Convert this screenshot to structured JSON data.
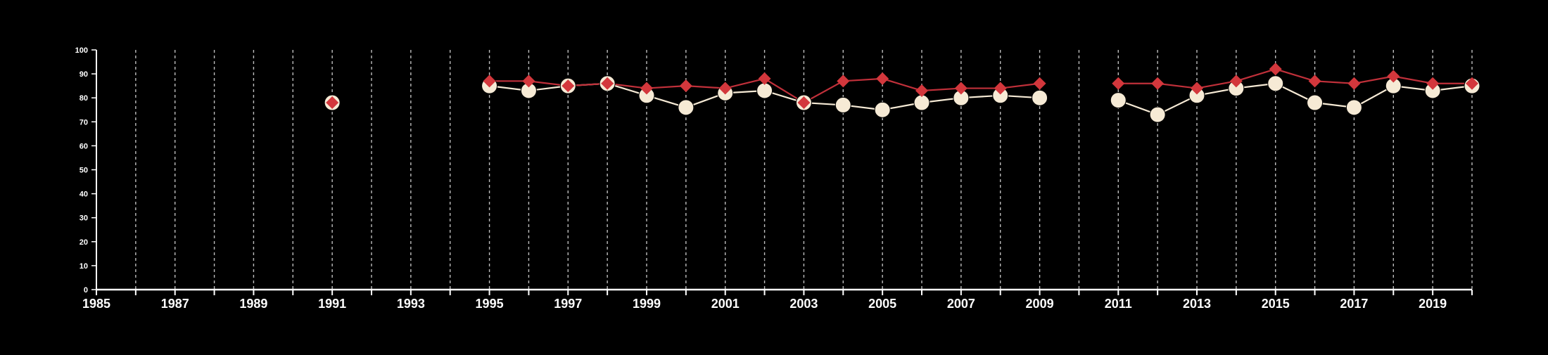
{
  "colors": {
    "background": "#000000",
    "axis": "#ffffff",
    "grid": "#bdbdbd",
    "series_a_fill": "#f6ead5",
    "series_a_line": "#f6ead5",
    "series_b_fill": "#d3373c",
    "series_b_line": "#c0303a",
    "tick_text": "#ffffff"
  },
  "chart_data": {
    "type": "line",
    "title": "",
    "xlabel": "",
    "ylabel": "",
    "xlim": [
      1985,
      2020
    ],
    "ylim": [
      0,
      100
    ],
    "y_ticks": [
      0,
      10,
      20,
      30,
      40,
      50,
      60,
      70,
      80,
      90,
      100
    ],
    "x_ticks": [
      1985,
      1986,
      1987,
      1988,
      1989,
      1990,
      1991,
      1992,
      1993,
      1994,
      1995,
      1996,
      1997,
      1998,
      1999,
      2000,
      2001,
      2002,
      2003,
      2004,
      2005,
      2006,
      2007,
      2008,
      2009,
      2010,
      2011,
      2012,
      2013,
      2014,
      2015,
      2016,
      2017,
      2018,
      2019,
      2020
    ],
    "x_tick_labels": [
      "1985",
      "1987",
      "1989",
      "1991",
      "1993",
      "1995",
      "1997",
      "1999",
      "2001",
      "2003",
      "2005",
      "2007",
      "2009",
      "2011",
      "2013",
      "2015",
      "2017",
      "2019"
    ],
    "vertical_grid": true,
    "legend": "none",
    "series": [
      {
        "marker": "circle",
        "color": "#f6ead5",
        "points": [
          [
            1991,
            78
          ],
          [
            1995,
            85
          ],
          [
            1996,
            83
          ],
          [
            1997,
            85
          ],
          [
            1998,
            86
          ],
          [
            1999,
            81
          ],
          [
            2000,
            76
          ],
          [
            2001,
            82
          ],
          [
            2002,
            83
          ],
          [
            2003,
            78
          ],
          [
            2004,
            77
          ],
          [
            2005,
            75
          ],
          [
            2006,
            78
          ],
          [
            2007,
            80
          ],
          [
            2008,
            81
          ],
          [
            2009,
            80
          ],
          [
            2011,
            79
          ],
          [
            2012,
            73
          ],
          [
            2013,
            81
          ],
          [
            2014,
            84
          ],
          [
            2015,
            86
          ],
          [
            2016,
            78
          ],
          [
            2017,
            76
          ],
          [
            2018,
            85
          ],
          [
            2019,
            83
          ],
          [
            2020,
            85
          ]
        ]
      },
      {
        "marker": "diamond",
        "color": "#d3373c",
        "points": [
          [
            1991,
            78
          ],
          [
            1995,
            87
          ],
          [
            1996,
            87
          ],
          [
            1997,
            85
          ],
          [
            1998,
            86
          ],
          [
            1999,
            84
          ],
          [
            2000,
            85
          ],
          [
            2001,
            84
          ],
          [
            2002,
            88
          ],
          [
            2003,
            78
          ],
          [
            2004,
            87
          ],
          [
            2005,
            88
          ],
          [
            2006,
            83
          ],
          [
            2007,
            84
          ],
          [
            2008,
            84
          ],
          [
            2009,
            86
          ],
          [
            2011,
            86
          ],
          [
            2012,
            86
          ],
          [
            2013,
            84
          ],
          [
            2014,
            87
          ],
          [
            2015,
            92
          ],
          [
            2016,
            87
          ],
          [
            2017,
            86
          ],
          [
            2018,
            89
          ],
          [
            2019,
            86
          ],
          [
            2020,
            86
          ]
        ]
      }
    ]
  }
}
